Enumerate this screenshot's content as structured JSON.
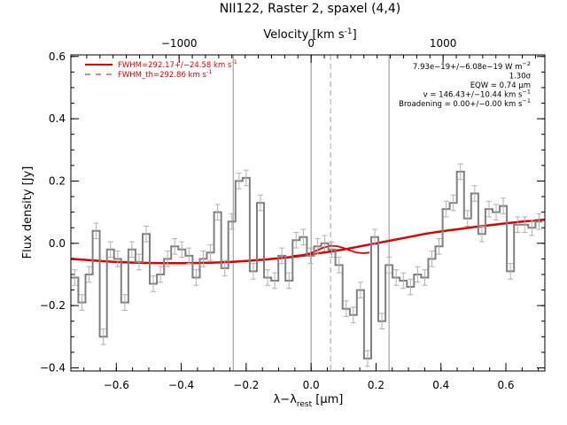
{
  "chart_data": {
    "type": "line",
    "title": "NII122, Raster 2, spaxel (4,4)",
    "xlabel": "λ−λ",
    "xlabel_sub": "rest",
    "xlabel_unit": " [μm]",
    "ylabel": "Flux density [Jy]",
    "top_axis_label": "Velocity [km s",
    "top_axis_label_sup": "-1",
    "top_axis_label_end": "]",
    "xlim": [
      -0.74,
      0.72
    ],
    "ylim": [
      -0.41,
      0.605
    ],
    "x_ticks": [
      -0.6,
      -0.4,
      -0.2,
      0.0,
      0.2,
      0.4,
      0.6
    ],
    "x_tick_labels": [
      "−0.6",
      "−0.4",
      "−0.2",
      "0.0",
      "0.2",
      "0.4",
      "0.6"
    ],
    "y_ticks": [
      -0.4,
      -0.2,
      0.0,
      0.2,
      0.4,
      0.6
    ],
    "y_tick_labels": [
      "−0.4",
      "−0.2",
      "0.0",
      "0.2",
      "0.4",
      "0.6"
    ],
    "top_ticks_kms": [
      -1000,
      0,
      1000
    ],
    "top_tick_labels": [
      "−1000",
      "0",
      "1000"
    ],
    "vertical_lines": [
      -0.24,
      0.0,
      0.24
    ],
    "dashed_vertical_line": 0.06,
    "grid": false,
    "legend_position": "top-left",
    "legend": [
      {
        "label": "FWHM=292.17+/−24.58 km s",
        "label_sup": "-1",
        "style": "solid",
        "color": "#dd0000"
      },
      {
        "label": "FWHM_th=292.86 km s",
        "label_sup": "-1",
        "style": "dashed",
        "color": "#dd0000"
      }
    ],
    "annotations": [
      {
        "text": "7.93e−19+/−6.08e−19 W m",
        "sup": "−2"
      },
      {
        "text": "1.30σ",
        "sup": ""
      },
      {
        "text": "EQW = 0.74 μm",
        "sup": ""
      },
      {
        "text": "v = 146.43+/−10.44 km s",
        "sup": "−1"
      },
      {
        "text": "Broadening = 0.00+/−0.00 km s",
        "sup": "−1"
      }
    ],
    "series": [
      {
        "style": "step-with-errors",
        "color": "#808080",
        "x": [
          -0.728,
          -0.706,
          -0.684,
          -0.662,
          -0.64,
          -0.618,
          -0.596,
          -0.574,
          -0.552,
          -0.53,
          -0.508,
          -0.486,
          -0.464,
          -0.442,
          -0.42,
          -0.398,
          -0.376,
          -0.354,
          -0.332,
          -0.31,
          -0.288,
          -0.266,
          -0.244,
          -0.222,
          -0.2,
          -0.178,
          -0.156,
          -0.134,
          -0.112,
          -0.09,
          -0.068,
          -0.046,
          -0.024,
          -0.002,
          0.02,
          0.042,
          0.064,
          0.086,
          0.108,
          0.13,
          0.152,
          0.174,
          0.196,
          0.218,
          0.24,
          0.262,
          0.284,
          0.306,
          0.328,
          0.35,
          0.372,
          0.394,
          0.416,
          0.438,
          0.46,
          0.482,
          0.504,
          0.526,
          0.548,
          0.57,
          0.592,
          0.614,
          0.636,
          0.658,
          0.68,
          0.702
        ],
        "values": [
          -0.11,
          -0.19,
          -0.1,
          0.04,
          -0.3,
          -0.02,
          -0.05,
          -0.19,
          -0.02,
          -0.06,
          0.03,
          -0.13,
          -0.1,
          -0.05,
          -0.01,
          -0.02,
          -0.04,
          -0.11,
          -0.05,
          -0.03,
          0.1,
          -0.08,
          0.07,
          0.2,
          0.21,
          -0.09,
          0.13,
          -0.11,
          -0.12,
          -0.04,
          -0.12,
          0.01,
          0.02,
          -0.04,
          -0.01,
          0.0,
          -0.02,
          -0.07,
          -0.21,
          -0.23,
          -0.15,
          -0.37,
          0.02,
          -0.25,
          -0.07,
          -0.11,
          -0.12,
          -0.14,
          -0.1,
          -0.11,
          -0.05,
          -0.01,
          0.11,
          0.13,
          0.23,
          0.08,
          0.16,
          0.03,
          0.11,
          0.1,
          0.12,
          -0.09,
          0.06,
          0.06,
          0.05,
          0.07
        ],
        "errors": [
          0.025,
          0.025,
          0.025,
          0.025,
          0.025,
          0.025,
          0.025,
          0.025,
          0.025,
          0.025,
          0.025,
          0.025,
          0.025,
          0.025,
          0.025,
          0.025,
          0.025,
          0.025,
          0.025,
          0.025,
          0.025,
          0.025,
          0.025,
          0.025,
          0.025,
          0.025,
          0.025,
          0.025,
          0.025,
          0.025,
          0.025,
          0.025,
          0.025,
          0.025,
          0.025,
          0.025,
          0.025,
          0.025,
          0.025,
          0.025,
          0.025,
          0.025,
          0.025,
          0.025,
          0.025,
          0.025,
          0.025,
          0.025,
          0.025,
          0.025,
          0.025,
          0.025,
          0.025,
          0.025,
          0.025,
          0.025,
          0.025,
          0.025,
          0.025,
          0.025,
          0.025,
          0.025,
          0.025,
          0.025,
          0.025,
          0.025
        ]
      },
      {
        "style": "line",
        "color": "#dd0000",
        "x": [
          -0.74,
          -0.7,
          -0.65,
          -0.6,
          -0.55,
          -0.5,
          -0.45,
          -0.4,
          -0.35,
          -0.3,
          -0.25,
          -0.2,
          -0.15,
          -0.1,
          -0.05,
          0.0,
          0.05,
          0.1,
          0.15,
          0.2,
          0.25,
          0.3,
          0.35,
          0.4,
          0.45,
          0.5,
          0.55,
          0.6,
          0.65,
          0.72
        ],
        "values": [
          -0.05,
          -0.053,
          -0.057,
          -0.06,
          -0.062,
          -0.063,
          -0.064,
          -0.064,
          -0.063,
          -0.062,
          -0.06,
          -0.057,
          -0.053,
          -0.048,
          -0.043,
          -0.036,
          -0.028,
          -0.02,
          -0.01,
          0.0,
          0.01,
          0.02,
          0.03,
          0.038,
          0.045,
          0.052,
          0.058,
          0.064,
          0.07,
          0.076
        ]
      },
      {
        "style": "line",
        "color": "#dd0000",
        "x": [
          -0.06,
          -0.03,
          0.0,
          0.02,
          0.04,
          0.06,
          0.08,
          0.1,
          0.12,
          0.14,
          0.16,
          0.18
        ],
        "values": [
          -0.041,
          -0.038,
          -0.031,
          -0.022,
          -0.013,
          -0.008,
          -0.009,
          -0.015,
          -0.023,
          -0.03,
          -0.032,
          -0.03
        ]
      }
    ]
  }
}
